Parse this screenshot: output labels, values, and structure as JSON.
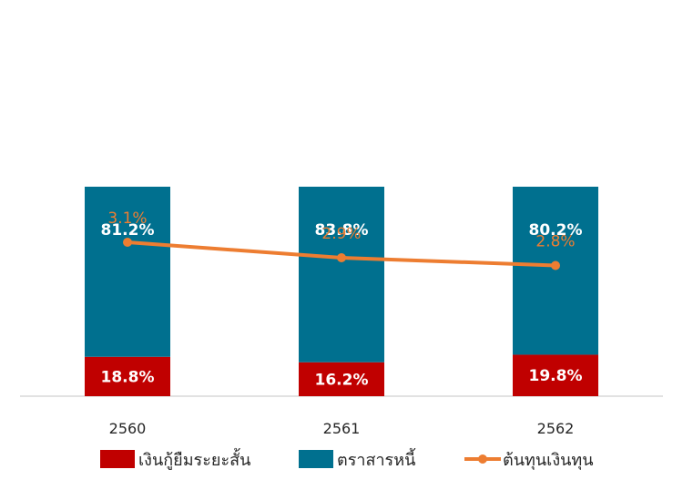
{
  "chart_data": {
    "type": "bar",
    "stacked": true,
    "categories": [
      "2560",
      "2561",
      "2562"
    ],
    "series": [
      {
        "name": "เงินกู้ยืมระยะสั้น",
        "type": "bar",
        "values": [
          18.8,
          16.2,
          19.8
        ],
        "labels": [
          "18.8%",
          "16.2%",
          "19.8%"
        ],
        "color": "#C00000"
      },
      {
        "name": "ตราสารหนี้",
        "type": "bar",
        "values": [
          81.2,
          83.8,
          80.2
        ],
        "labels": [
          "81.2%",
          "83.8%",
          "80.2%"
        ],
        "color": "#00708F"
      },
      {
        "name": "ต้นทุนเงินทุน",
        "type": "line",
        "values": [
          3.1,
          2.9,
          2.8
        ],
        "labels": [
          "3.1%",
          "2.9%",
          "2.8%"
        ],
        "color": "#ED7D31"
      }
    ],
    "legend_position": "bottom",
    "grid": false
  }
}
